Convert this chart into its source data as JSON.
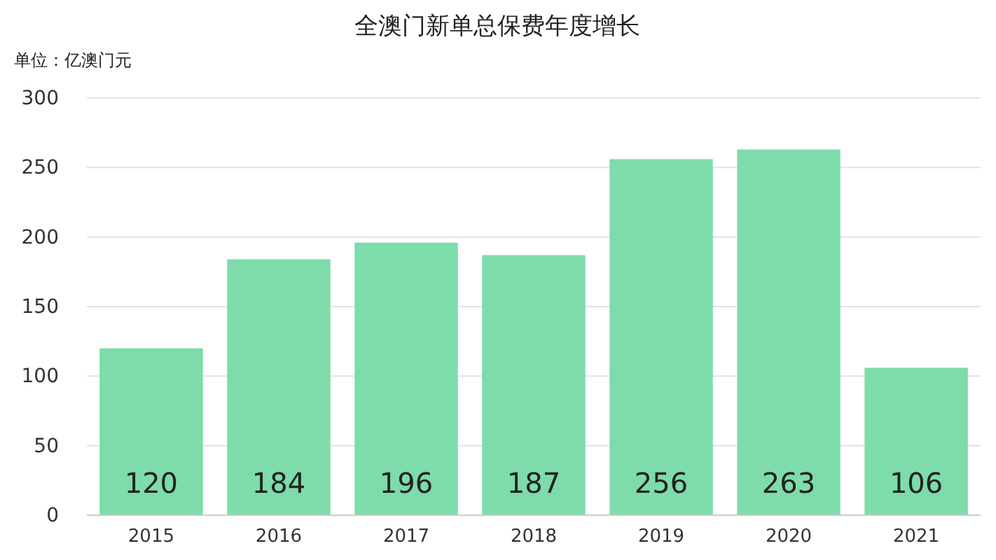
{
  "chart_data": {
    "type": "bar",
    "title": "全澳门新单总保费年度增长",
    "ylabel": "单位：亿澳门元",
    "categories": [
      "2015",
      "2016",
      "2017",
      "2018",
      "2019",
      "2020",
      "2021"
    ],
    "values": [
      120,
      184,
      196,
      187,
      256,
      263,
      106
    ],
    "color": "#7ddcaa",
    "ylim": [
      0,
      300
    ],
    "yticks": [
      0,
      50,
      100,
      150,
      200,
      250,
      300
    ],
    "grid": "y",
    "data_labels": true
  }
}
